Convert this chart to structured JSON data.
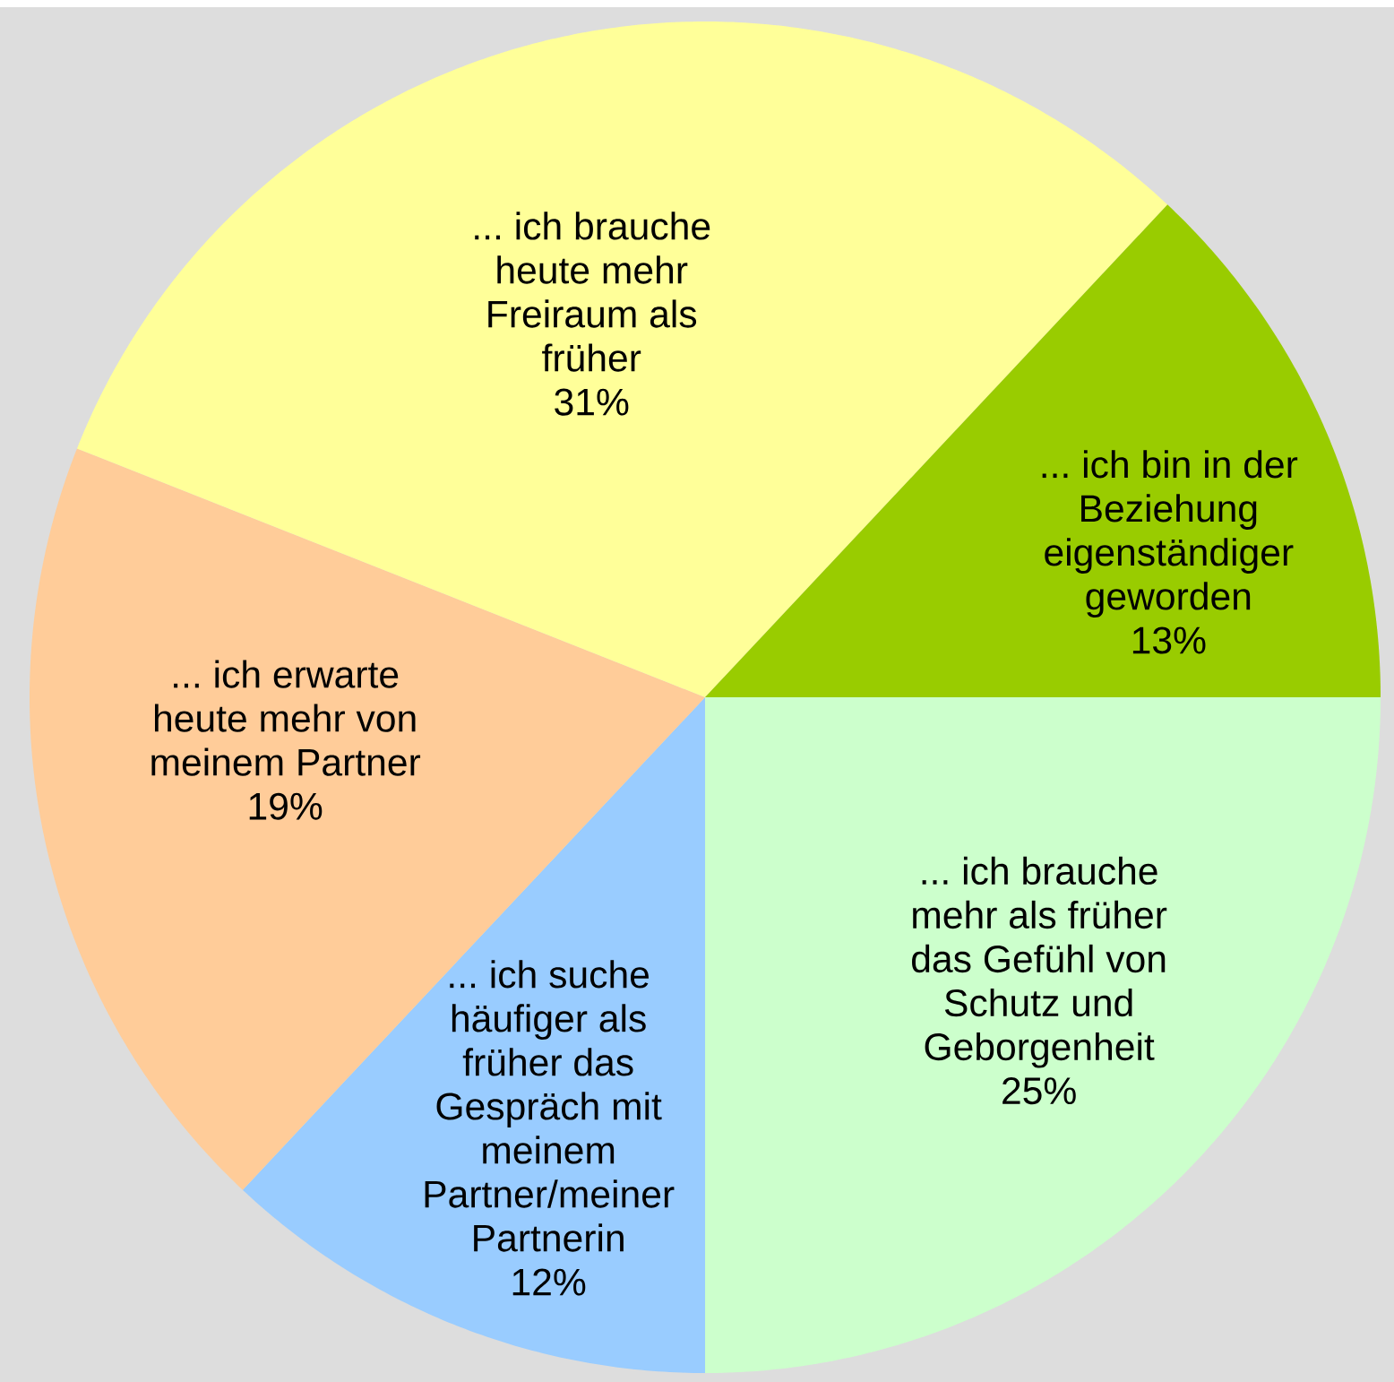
{
  "chart_data": {
    "type": "pie",
    "categories": [
      "... ich brauche mehr als früher das Gefühl von Schutz und Geborgenheit",
      "... ich suche häufiger als früher das Gespräch mit meinem Partner/meiner Partnerin",
      "... ich erwarte heute mehr von meinem Partner",
      "... ich brauche heute mehr Freiraum als früher",
      "... ich bin in der Beziehung eigenständiger geworden"
    ],
    "values": [
      25,
      12,
      19,
      31,
      13
    ],
    "colors": [
      "#ccffcc",
      "#99ccff",
      "#ffcc99",
      "#ffff99",
      "#99cc00"
    ],
    "value_labels": [
      "25%",
      "12%",
      "19%",
      "31%",
      "13%"
    ]
  }
}
